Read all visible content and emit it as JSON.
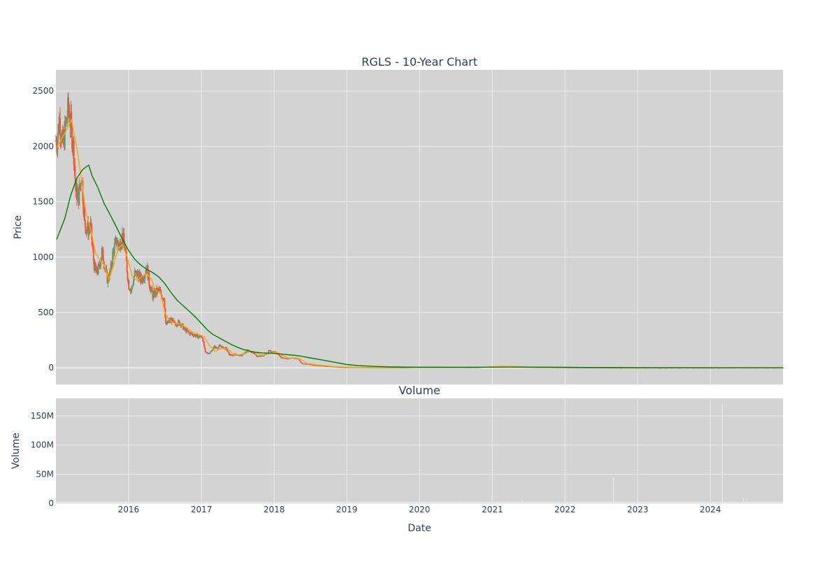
{
  "chart_data": [
    {
      "type": "candlestick",
      "title": "RGLS - 10-Year Chart",
      "ylabel": "Price",
      "ylim": [
        -150,
        2690
      ],
      "xlim": [
        "2015-01-01",
        "2024-12-31"
      ],
      "yticks": [
        0,
        500,
        1000,
        1500,
        2000,
        2500
      ],
      "ytick_labels": [
        "0",
        "500",
        "1000",
        "1500",
        "2000",
        "2500"
      ],
      "grid": true,
      "colors": {
        "plot_bg": "#d3d3d3",
        "grid": "#ececec",
        "up": "#5a9e72",
        "down": "#ef553b",
        "ma_short": "#ffa500",
        "ma_long": "#008000",
        "text": "#2a3f5f"
      },
      "ohlc_close_anchors": [
        [
          "2015-01-05",
          2050
        ],
        [
          "2015-01-20",
          2250
        ],
        [
          "2015-02-05",
          2000
        ],
        [
          "2015-02-20",
          2200
        ],
        [
          "2015-03-05",
          2350
        ],
        [
          "2015-03-20",
          2150
        ],
        [
          "2015-04-01",
          1950
        ],
        [
          "2015-04-10",
          1600
        ],
        [
          "2015-04-25",
          1550
        ],
        [
          "2015-05-10",
          1750
        ],
        [
          "2015-05-25",
          1300
        ],
        [
          "2015-06-10",
          1250
        ],
        [
          "2015-06-25",
          1270
        ],
        [
          "2015-07-10",
          950
        ],
        [
          "2015-07-20",
          850
        ],
        [
          "2015-08-05",
          900
        ],
        [
          "2015-08-20",
          1050
        ],
        [
          "2015-09-01",
          950
        ],
        [
          "2015-09-15",
          800
        ],
        [
          "2015-10-01",
          850
        ],
        [
          "2015-10-15",
          1050
        ],
        [
          "2015-11-01",
          1150
        ],
        [
          "2015-11-15",
          1100
        ],
        [
          "2015-12-01",
          1200
        ],
        [
          "2015-12-15",
          1050
        ],
        [
          "2016-01-01",
          750
        ],
        [
          "2016-01-15",
          700
        ],
        [
          "2016-02-01",
          850
        ],
        [
          "2016-02-15",
          850
        ],
        [
          "2016-03-01",
          800
        ],
        [
          "2016-03-15",
          820
        ],
        [
          "2016-04-01",
          920
        ],
        [
          "2016-04-15",
          750
        ],
        [
          "2016-05-01",
          650
        ],
        [
          "2016-05-15",
          680
        ],
        [
          "2016-06-01",
          700
        ],
        [
          "2016-06-15",
          650
        ],
        [
          "2016-06-28",
          640
        ],
        [
          "2016-07-05",
          380
        ],
        [
          "2016-07-20",
          420
        ],
        [
          "2016-08-05",
          430
        ],
        [
          "2016-08-20",
          390
        ],
        [
          "2016-09-05",
          410
        ],
        [
          "2016-09-20",
          400
        ],
        [
          "2016-10-05",
          350
        ],
        [
          "2016-10-20",
          330
        ],
        [
          "2016-11-05",
          310
        ],
        [
          "2016-11-20",
          300
        ],
        [
          "2016-12-05",
          290
        ],
        [
          "2016-12-20",
          280
        ],
        [
          "2017-01-05",
          280
        ],
        [
          "2017-01-20",
          140
        ],
        [
          "2017-02-05",
          130
        ],
        [
          "2017-02-20",
          150
        ],
        [
          "2017-03-05",
          190
        ],
        [
          "2017-03-20",
          180
        ],
        [
          "2017-04-05",
          200
        ],
        [
          "2017-04-20",
          180
        ],
        [
          "2017-05-05",
          175
        ],
        [
          "2017-05-20",
          120
        ],
        [
          "2017-06-05",
          110
        ],
        [
          "2017-06-20",
          125
        ],
        [
          "2017-07-05",
          115
        ],
        [
          "2017-07-20",
          110
        ],
        [
          "2017-08-05",
          130
        ],
        [
          "2017-08-20",
          160
        ],
        [
          "2017-09-05",
          150
        ],
        [
          "2017-09-20",
          130
        ],
        [
          "2017-10-05",
          110
        ],
        [
          "2017-10-20",
          105
        ],
        [
          "2017-11-05",
          110
        ],
        [
          "2017-11-20",
          120
        ],
        [
          "2017-12-05",
          150
        ],
        [
          "2017-12-20",
          145
        ],
        [
          "2018-01-05",
          140
        ],
        [
          "2018-01-20",
          130
        ],
        [
          "2018-02-05",
          95
        ],
        [
          "2018-02-20",
          85
        ],
        [
          "2018-03-05",
          80
        ],
        [
          "2018-04-01",
          90
        ],
        [
          "2018-05-01",
          85
        ],
        [
          "2018-05-20",
          40
        ],
        [
          "2018-06-20",
          35
        ],
        [
          "2018-07-20",
          25
        ],
        [
          "2018-08-20",
          20
        ],
        [
          "2018-09-20",
          15
        ],
        [
          "2018-10-20",
          12
        ],
        [
          "2018-11-20",
          8
        ],
        [
          "2018-12-20",
          5
        ],
        [
          "2019-02-01",
          5
        ],
        [
          "2019-04-01",
          4
        ],
        [
          "2019-07-01",
          3
        ],
        [
          "2019-10-01",
          3
        ],
        [
          "2020-01-01",
          5
        ],
        [
          "2020-04-01",
          6
        ],
        [
          "2020-07-01",
          5
        ],
        [
          "2020-10-01",
          4
        ],
        [
          "2021-01-01",
          12
        ],
        [
          "2021-03-01",
          15
        ],
        [
          "2021-05-01",
          8
        ],
        [
          "2021-08-01",
          6
        ],
        [
          "2021-11-01",
          4
        ],
        [
          "2022-02-01",
          3
        ],
        [
          "2022-06-01",
          2
        ],
        [
          "2022-10-01",
          1
        ],
        [
          "2023-02-01",
          1
        ],
        [
          "2023-06-01",
          1
        ],
        [
          "2023-10-01",
          1
        ],
        [
          "2024-02-01",
          1
        ],
        [
          "2024-06-01",
          1.5
        ],
        [
          "2024-12-31",
          1
        ]
      ],
      "ma_short": [
        [
          "2015-01-05",
          1990
        ],
        [
          "2015-02-15",
          2120
        ],
        [
          "2015-03-20",
          2240
        ],
        [
          "2015-04-15",
          2000
        ],
        [
          "2015-05-10",
          1700
        ],
        [
          "2015-06-01",
          1400
        ],
        [
          "2015-06-25",
          1250
        ],
        [
          "2015-07-20",
          1030
        ],
        [
          "2015-08-10",
          980
        ],
        [
          "2015-09-01",
          920
        ],
        [
          "2015-09-25",
          800
        ],
        [
          "2015-10-15",
          910
        ],
        [
          "2015-11-10",
          1080
        ],
        [
          "2015-12-01",
          1110
        ],
        [
          "2015-12-25",
          1000
        ],
        [
          "2016-01-20",
          820
        ],
        [
          "2016-02-15",
          790
        ],
        [
          "2016-03-10",
          830
        ],
        [
          "2016-04-01",
          850
        ],
        [
          "2016-04-25",
          800
        ],
        [
          "2016-05-15",
          700
        ],
        [
          "2016-06-10",
          670
        ],
        [
          "2016-07-01",
          500
        ],
        [
          "2016-07-20",
          440
        ],
        [
          "2016-08-20",
          400
        ],
        [
          "2016-09-20",
          400
        ],
        [
          "2016-10-20",
          360
        ],
        [
          "2016-11-20",
          320
        ],
        [
          "2016-12-20",
          300
        ],
        [
          "2017-01-15",
          280
        ],
        [
          "2017-02-10",
          200
        ],
        [
          "2017-03-10",
          150
        ],
        [
          "2017-04-10",
          175
        ],
        [
          "2017-05-10",
          175
        ],
        [
          "2017-06-10",
          125
        ],
        [
          "2017-07-10",
          118
        ],
        [
          "2017-08-10",
          130
        ],
        [
          "2017-09-10",
          150
        ],
        [
          "2017-10-10",
          130
        ],
        [
          "2017-11-10",
          112
        ],
        [
          "2017-12-10",
          130
        ],
        [
          "2018-01-15",
          140
        ],
        [
          "2018-02-15",
          110
        ],
        [
          "2018-03-15",
          88
        ],
        [
          "2018-04-20",
          88
        ],
        [
          "2018-05-15",
          80
        ],
        [
          "2018-06-15",
          40
        ],
        [
          "2018-08-15",
          25
        ],
        [
          "2018-10-15",
          14
        ],
        [
          "2018-12-15",
          7
        ],
        [
          "2019-03-01",
          5
        ],
        [
          "2019-08-01",
          3
        ],
        [
          "2020-01-01",
          5
        ],
        [
          "2020-06-01",
          5
        ],
        [
          "2020-11-01",
          5
        ],
        [
          "2021-02-01",
          12
        ],
        [
          "2021-04-01",
          13
        ],
        [
          "2021-07-01",
          7
        ],
        [
          "2021-12-01",
          4
        ],
        [
          "2022-06-01",
          2
        ],
        [
          "2023-01-01",
          1
        ],
        [
          "2024-01-01",
          1
        ],
        [
          "2024-12-31",
          1
        ]
      ],
      "ma_long": [
        [
          "2015-01-05",
          1160
        ],
        [
          "2015-02-15",
          1350
        ],
        [
          "2015-03-15",
          1550
        ],
        [
          "2015-04-15",
          1710
        ],
        [
          "2015-05-15",
          1790
        ],
        [
          "2015-06-05",
          1820
        ],
        [
          "2015-06-15",
          1830
        ],
        [
          "2015-06-30",
          1740
        ],
        [
          "2015-07-30",
          1630
        ],
        [
          "2015-09-01",
          1480
        ],
        [
          "2015-10-01",
          1380
        ],
        [
          "2015-11-01",
          1270
        ],
        [
          "2015-12-01",
          1160
        ],
        [
          "2016-01-01",
          1060
        ],
        [
          "2016-02-01",
          980
        ],
        [
          "2016-03-01",
          930
        ],
        [
          "2016-04-01",
          890
        ],
        [
          "2016-05-01",
          860
        ],
        [
          "2016-06-01",
          820
        ],
        [
          "2016-07-01",
          760
        ],
        [
          "2016-08-01",
          680
        ],
        [
          "2016-09-01",
          610
        ],
        [
          "2016-10-01",
          560
        ],
        [
          "2016-11-01",
          510
        ],
        [
          "2016-12-01",
          460
        ],
        [
          "2017-01-01",
          400
        ],
        [
          "2017-02-01",
          340
        ],
        [
          "2017-03-01",
          300
        ],
        [
          "2017-04-01",
          270
        ],
        [
          "2017-05-01",
          240
        ],
        [
          "2017-06-01",
          210
        ],
        [
          "2017-07-01",
          185
        ],
        [
          "2017-08-01",
          165
        ],
        [
          "2017-09-01",
          150
        ],
        [
          "2017-10-01",
          140
        ],
        [
          "2017-11-01",
          135
        ],
        [
          "2017-12-01",
          133
        ],
        [
          "2018-01-01",
          130
        ],
        [
          "2018-02-01",
          125
        ],
        [
          "2018-03-01",
          120
        ],
        [
          "2018-04-01",
          115
        ],
        [
          "2018-05-01",
          110
        ],
        [
          "2018-06-01",
          100
        ],
        [
          "2018-07-01",
          90
        ],
        [
          "2018-09-01",
          70
        ],
        [
          "2018-11-01",
          50
        ],
        [
          "2019-01-01",
          30
        ],
        [
          "2019-03-01",
          20
        ],
        [
          "2019-06-01",
          12
        ],
        [
          "2019-09-01",
          8
        ],
        [
          "2020-01-01",
          6
        ],
        [
          "2020-06-01",
          5
        ],
        [
          "2021-01-01",
          6
        ],
        [
          "2021-06-01",
          7
        ],
        [
          "2022-01-01",
          5
        ],
        [
          "2022-06-01",
          3
        ],
        [
          "2023-01-01",
          2
        ],
        [
          "2024-01-01",
          1
        ],
        [
          "2024-12-31",
          1
        ]
      ]
    },
    {
      "type": "bar",
      "title": "Volume",
      "xlabel": "Date",
      "ylabel": "Volume",
      "ylim": [
        0,
        180000000
      ],
      "yticks": [
        0,
        50000000,
        100000000,
        150000000
      ],
      "ytick_labels": [
        "0",
        "50M",
        "100M",
        "150M"
      ],
      "xticks": [
        "2016-01-01",
        "2017-01-01",
        "2018-01-01",
        "2019-01-01",
        "2020-01-01",
        "2021-01-01",
        "2022-01-01",
        "2023-01-01",
        "2024-01-01"
      ],
      "xtick_labels": [
        "2016",
        "2017",
        "2018",
        "2019",
        "2020",
        "2021",
        "2022",
        "2023",
        "2024"
      ],
      "grid": true,
      "colors": {
        "bar": "#e6e6e6"
      },
      "spikes": [
        [
          "2020-07-20",
          3000000
        ],
        [
          "2021-02-15",
          2000000
        ],
        [
          "2021-03-20",
          3000000
        ],
        [
          "2021-04-10",
          2500000
        ],
        [
          "2021-06-01",
          4000000
        ],
        [
          "2022-04-01",
          2000000
        ],
        [
          "2022-09-01",
          45000000
        ],
        [
          "2024-03-01",
          170000000
        ],
        [
          "2024-06-15",
          10000000
        ],
        [
          "2024-07-01",
          8000000
        ]
      ]
    }
  ]
}
